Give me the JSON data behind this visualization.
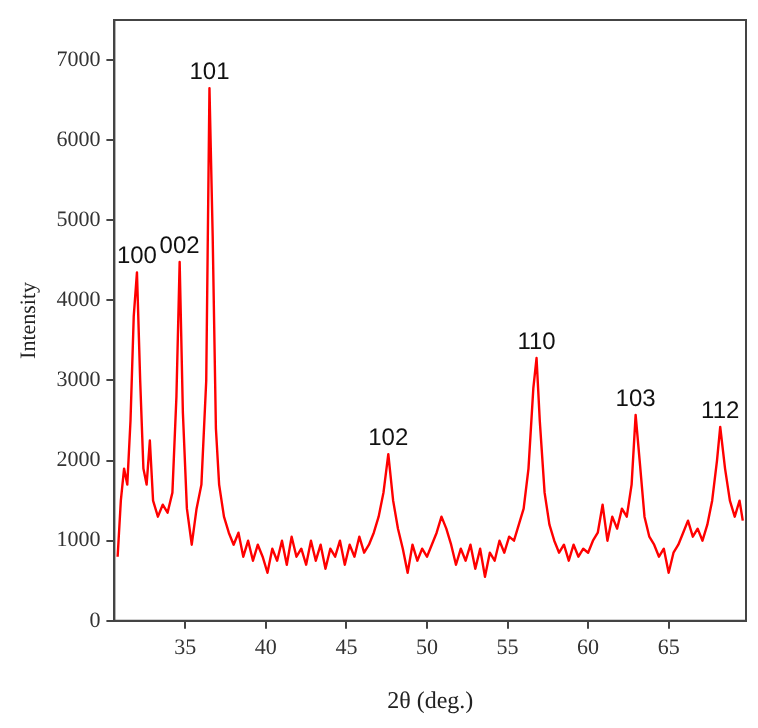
{
  "chart_data": {
    "type": "line",
    "xlabel": "2θ (deg.)",
    "ylabel": "Intensity",
    "xlim": [
      30.6,
      69.8
    ],
    "ylim": [
      0,
      7500
    ],
    "xticks": [
      35,
      40,
      45,
      50,
      55,
      60,
      65
    ],
    "yticks": [
      0,
      1000,
      2000,
      3000,
      4000,
      5000,
      6000,
      7000
    ],
    "grid": false,
    "legend": false,
    "marker": "none",
    "line_style": "solid",
    "annotations": [
      {
        "text": "100",
        "x": 32.0,
        "y": 4350
      },
      {
        "text": "002",
        "x": 34.65,
        "y": 4480
      },
      {
        "text": "101",
        "x": 36.5,
        "y": 6650
      },
      {
        "text": "102",
        "x": 47.6,
        "y": 2080
      },
      {
        "text": "110",
        "x": 56.8,
        "y": 3280
      },
      {
        "text": "103",
        "x": 62.95,
        "y": 2570
      },
      {
        "text": "112",
        "x": 68.2,
        "y": 2420
      }
    ],
    "series": [
      {
        "color": "#ff0000",
        "x": [
          30.8,
          31.0,
          31.2,
          31.4,
          31.6,
          31.8,
          32.0,
          32.2,
          32.4,
          32.6,
          32.8,
          33.0,
          33.3,
          33.6,
          33.9,
          34.2,
          34.45,
          34.65,
          34.85,
          35.1,
          35.4,
          35.7,
          36.0,
          36.3,
          36.5,
          36.7,
          36.9,
          37.1,
          37.4,
          37.7,
          38.0,
          38.3,
          38.6,
          38.9,
          39.2,
          39.5,
          39.8,
          40.1,
          40.4,
          40.7,
          41.0,
          41.3,
          41.6,
          41.9,
          42.2,
          42.5,
          42.8,
          43.1,
          43.4,
          43.7,
          44.0,
          44.3,
          44.6,
          44.9,
          45.2,
          45.5,
          45.8,
          46.1,
          46.4,
          46.7,
          47.0,
          47.3,
          47.6,
          47.9,
          48.2,
          48.5,
          48.8,
          49.1,
          49.4,
          49.7,
          50.0,
          50.3,
          50.6,
          50.9,
          51.2,
          51.5,
          51.8,
          52.1,
          52.4,
          52.7,
          53.0,
          53.3,
          53.6,
          53.9,
          54.2,
          54.5,
          54.8,
          55.1,
          55.4,
          55.7,
          56.0,
          56.3,
          56.6,
          56.8,
          57.0,
          57.3,
          57.6,
          57.9,
          58.2,
          58.5,
          58.8,
          59.1,
          59.4,
          59.7,
          60.0,
          60.3,
          60.6,
          60.9,
          61.2,
          61.5,
          61.8,
          62.1,
          62.4,
          62.7,
          62.95,
          63.2,
          63.5,
          63.8,
          64.1,
          64.4,
          64.7,
          65.0,
          65.3,
          65.6,
          65.9,
          66.2,
          66.5,
          66.8,
          67.1,
          67.4,
          67.7,
          68.0,
          68.2,
          68.5,
          68.8,
          69.1,
          69.4,
          69.6
        ],
        "values": [
          800,
          1500,
          1900,
          1700,
          2500,
          3800,
          4350,
          3000,
          1900,
          1700,
          2250,
          1500,
          1300,
          1450,
          1350,
          1600,
          2800,
          4480,
          2600,
          1400,
          950,
          1400,
          1700,
          3000,
          6650,
          4800,
          2400,
          1700,
          1300,
          1100,
          950,
          1100,
          800,
          1000,
          750,
          950,
          800,
          600,
          900,
          750,
          1000,
          700,
          1050,
          800,
          900,
          700,
          1000,
          750,
          950,
          650,
          900,
          800,
          1000,
          700,
          950,
          800,
          1050,
          850,
          950,
          1100,
          1300,
          1600,
          2080,
          1500,
          1150,
          900,
          600,
          950,
          750,
          900,
          800,
          950,
          1100,
          1300,
          1150,
          950,
          700,
          900,
          750,
          950,
          650,
          900,
          550,
          850,
          750,
          1000,
          850,
          1050,
          1000,
          1200,
          1400,
          1900,
          2900,
          3280,
          2500,
          1600,
          1200,
          1000,
          850,
          950,
          750,
          950,
          800,
          900,
          850,
          1000,
          1100,
          1450,
          1000,
          1300,
          1150,
          1400,
          1300,
          1700,
          2570,
          2000,
          1300,
          1050,
          950,
          800,
          900,
          600,
          850,
          950,
          1100,
          1250,
          1050,
          1150,
          1000,
          1200,
          1500,
          2000,
          2420,
          1900,
          1500,
          1300,
          1500,
          1250
        ]
      }
    ]
  }
}
